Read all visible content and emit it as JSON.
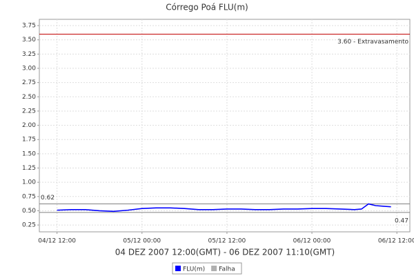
{
  "chart_data": {
    "type": "line",
    "title": "Córrego Poá FLU(m)",
    "x_label": "04 DEZ 2007 12:00(GMT) - 06 DEZ 2007 11:10(GMT)",
    "x": [
      "04/12 12:00",
      "04/12 14:00",
      "04/12 16:00",
      "04/12 18:00",
      "04/12 20:00",
      "04/12 22:00",
      "05/12 00:00",
      "05/12 02:00",
      "05/12 04:00",
      "05/12 06:00",
      "05/12 08:00",
      "05/12 10:00",
      "05/12 12:00",
      "05/12 14:00",
      "05/12 16:00",
      "05/12 18:00",
      "05/12 20:00",
      "05/12 22:00",
      "06/12 00:00",
      "06/12 02:00",
      "06/12 04:00",
      "06/12 06:00",
      "06/12 07:00",
      "06/12 08:00",
      "06/12 09:00",
      "06/12 10:00",
      "06/12 11:10"
    ],
    "series": [
      {
        "name": "FLU(m)",
        "color": "#0000ff",
        "values": [
          0.51,
          0.52,
          0.52,
          0.5,
          0.49,
          0.51,
          0.54,
          0.55,
          0.55,
          0.54,
          0.52,
          0.52,
          0.53,
          0.53,
          0.52,
          0.52,
          0.53,
          0.53,
          0.54,
          0.54,
          0.53,
          0.52,
          0.53,
          0.62,
          0.59,
          0.58,
          0.57
        ]
      }
    ],
    "legend_extra": [
      {
        "name": "Falha",
        "color": "#b0b0b0"
      }
    ],
    "xlim": [
      "04/12 09:30",
      "06/12 13:50"
    ],
    "xticks": [
      "04/12 12:00",
      "05/12 00:00",
      "05/12 12:00",
      "06/12 00:00",
      "06/12 12:00"
    ],
    "ylim": [
      0.13,
      3.86
    ],
    "yticks": [
      {
        "value": 0.25,
        "label": "0.25"
      },
      {
        "value": 0.5,
        "label": "0.50"
      },
      {
        "value": 0.75,
        "label": "0.75"
      },
      {
        "value": 1,
        "label": "1.00"
      },
      {
        "value": 1.25,
        "label": "1.25"
      },
      {
        "value": 1.5,
        "label": "1.50"
      },
      {
        "value": 1.75,
        "label": "1.75"
      },
      {
        "value": 2,
        "label": "2.00"
      },
      {
        "value": 2.25,
        "label": "2.25"
      },
      {
        "value": 2.5,
        "label": "2.50"
      },
      {
        "value": 2.75,
        "label": "2.75"
      },
      {
        "value": 3,
        "label": "3.00"
      },
      {
        "value": 3.25,
        "label": "3.25"
      },
      {
        "value": 3.5,
        "label": "3.50"
      },
      {
        "value": 3.75,
        "label": "3.75"
      }
    ],
    "grid": true,
    "markers": [
      {
        "value": 3.6,
        "label": "3.60 - Extravasamento",
        "color": "#c00000",
        "side": "right-above"
      },
      {
        "value": 0.62,
        "label": "0.62",
        "color": "#808080",
        "side": "left"
      },
      {
        "value": 0.47,
        "label": "0.47",
        "color": "#808080",
        "side": "right-below"
      }
    ]
  }
}
